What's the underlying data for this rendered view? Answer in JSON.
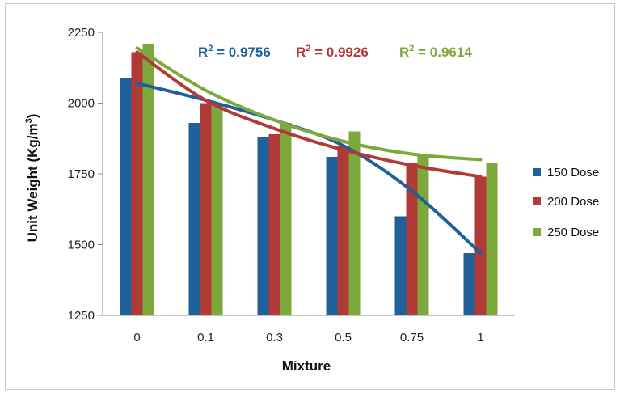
{
  "chart_data": {
    "type": "bar",
    "categories": [
      "0",
      "0.1",
      "0.3",
      "0.5",
      "0.75",
      "1"
    ],
    "series": [
      {
        "name": "150 Dose",
        "color": "#1f5f9a",
        "values": [
          2090,
          1930,
          1880,
          1810,
          1600,
          1470
        ]
      },
      {
        "name": "200 Dose",
        "color": "#b23a36",
        "values": [
          2180,
          2000,
          1890,
          1850,
          1790,
          1740
        ]
      },
      {
        "name": "250 Dose",
        "color": "#7da83b",
        "values": [
          2210,
          2000,
          1930,
          1900,
          1820,
          1790
        ]
      }
    ],
    "trendlines": [
      {
        "series": "150 Dose",
        "label_prefix": "R",
        "label_sup": "2",
        "label_value": " = 0.9756",
        "color": "#1f5f9a",
        "values": [
          2070,
          2010,
          1940,
          1850,
          1690,
          1470
        ]
      },
      {
        "series": "200 Dose",
        "label_prefix": "R",
        "label_sup": "2",
        "label_value": " = 0.9926",
        "color": "#b23a36",
        "values": [
          2180,
          2010,
          1910,
          1835,
          1780,
          1740
        ]
      },
      {
        "series": "250 Dose",
        "label_prefix": "R",
        "label_sup": "2",
        "label_value": " = 0.9614",
        "color": "#7da83b",
        "values": [
          2195,
          2045,
          1940,
          1865,
          1820,
          1800
        ]
      }
    ],
    "xlabel": "Mixture",
    "ylabel_main": "Unit Weight (Kg/m",
    "ylabel_sup": "3",
    "ylabel_end": ")",
    "ylim": [
      1250,
      2250
    ],
    "yticks": [
      1250,
      1500,
      1750,
      2000,
      2250
    ],
    "legend_position": "right"
  }
}
